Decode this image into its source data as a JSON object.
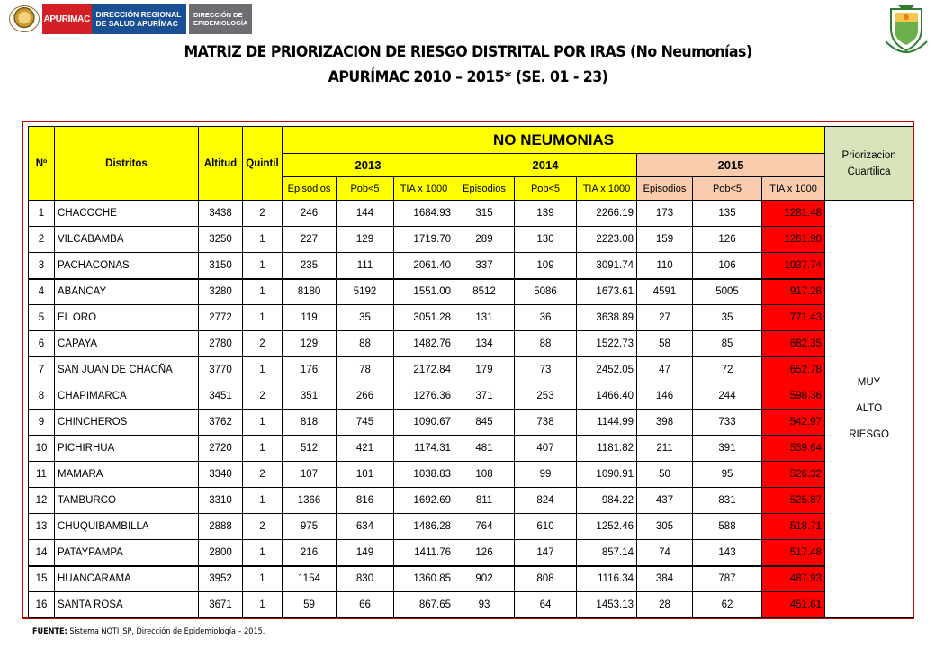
{
  "header": {
    "brand": "APURÍMAC",
    "dir_regional": [
      "DIRECCIÓN REGIONAL",
      "DE SALUD APURÍMAC"
    ],
    "dir_epi": [
      "DIRECCIÓN DE",
      "EPIDEMIOLOGÍA"
    ],
    "title_line1": "MATRIZ DE PRIORIZACION DE RIESGO DISTRITAL POR IRAS (No Neumonías)",
    "title_line2": "APURÍMAC 2010 – 2015* (SE. 01 - 23)"
  },
  "table": {
    "col_no": "Nº",
    "col_distritos": "Distritos",
    "col_altitud": "Altitud",
    "col_quintil": "Quintil",
    "group": "NO NEUMONIAS",
    "col_prio": "Priorizacion Cuartilica",
    "years": [
      "2013",
      "2014",
      "2015"
    ],
    "sub": [
      "Episodios",
      "Pob<5",
      "TIA x 1000"
    ],
    "priority_label": [
      "MUY",
      "ALTO",
      "RIESGO"
    ],
    "rows": [
      {
        "n": "1",
        "d": "CHACOCHE",
        "alt": "3438",
        "q": "2",
        "e13": "246",
        "p13": "144",
        "t13": "1684.93",
        "e14": "315",
        "p14": "139",
        "t14": "2266.19",
        "e15": "173",
        "p15": "135",
        "t15": "1281.48"
      },
      {
        "n": "2",
        "d": "VILCABAMBA",
        "alt": "3250",
        "q": "1",
        "e13": "227",
        "p13": "129",
        "t13": "1719.70",
        "e14": "289",
        "p14": "130",
        "t14": "2223.08",
        "e15": "159",
        "p15": "126",
        "t15": "1261.90"
      },
      {
        "n": "3",
        "d": "PACHACONAS",
        "alt": "3150",
        "q": "1",
        "e13": "235",
        "p13": "111",
        "t13": "2061.40",
        "e14": "337",
        "p14": "109",
        "t14": "3091.74",
        "e15": "110",
        "p15": "106",
        "t15": "1037.74"
      },
      {
        "n": "4",
        "d": "ABANCAY",
        "alt": "3280",
        "q": "1",
        "e13": "8180",
        "p13": "5192",
        "t13": "1551.00",
        "e14": "8512",
        "p14": "5086",
        "t14": "1673.61",
        "e15": "4591",
        "p15": "5005",
        "t15": "917.28"
      },
      {
        "n": "5",
        "d": "EL ORO",
        "alt": "2772",
        "q": "1",
        "e13": "119",
        "p13": "35",
        "t13": "3051.28",
        "e14": "131",
        "p14": "36",
        "t14": "3638.89",
        "e15": "27",
        "p15": "35",
        "t15": "771.43"
      },
      {
        "n": "6",
        "d": "CAPAYA",
        "alt": "2780",
        "q": "2",
        "e13": "129",
        "p13": "88",
        "t13": "1482.76",
        "e14": "134",
        "p14": "88",
        "t14": "1522.73",
        "e15": "58",
        "p15": "85",
        "t15": "682.35"
      },
      {
        "n": "7",
        "d": "SAN JUAN DE CHACÑA",
        "alt": "3770",
        "q": "1",
        "e13": "176",
        "p13": "78",
        "t13": "2172.84",
        "e14": "179",
        "p14": "73",
        "t14": "2452.05",
        "e15": "47",
        "p15": "72",
        "t15": "652.78"
      },
      {
        "n": "8",
        "d": "CHAPIMARCA",
        "alt": "3451",
        "q": "2",
        "e13": "351",
        "p13": "266",
        "t13": "1276.36",
        "e14": "371",
        "p14": "253",
        "t14": "1466.40",
        "e15": "146",
        "p15": "244",
        "t15": "598.36"
      },
      {
        "n": "9",
        "d": "CHINCHEROS",
        "alt": "3762",
        "q": "1",
        "e13": "818",
        "p13": "745",
        "t13": "1090.67",
        "e14": "845",
        "p14": "738",
        "t14": "1144.99",
        "e15": "398",
        "p15": "733",
        "t15": "542.97"
      },
      {
        "n": "10",
        "d": "PICHIRHUA",
        "alt": "2720",
        "q": "1",
        "e13": "512",
        "p13": "421",
        "t13": "1174.31",
        "e14": "481",
        "p14": "407",
        "t14": "1181.82",
        "e15": "211",
        "p15": "391",
        "t15": "539.64"
      },
      {
        "n": "11",
        "d": "MAMARA",
        "alt": "3340",
        "q": "2",
        "e13": "107",
        "p13": "101",
        "t13": "1038.83",
        "e14": "108",
        "p14": "99",
        "t14": "1090.91",
        "e15": "50",
        "p15": "95",
        "t15": "526.32"
      },
      {
        "n": "12",
        "d": "TAMBURCO",
        "alt": "3310",
        "q": "1",
        "e13": "1366",
        "p13": "816",
        "t13": "1692.69",
        "e14": "811",
        "p14": "824",
        "t14": "984.22",
        "e15": "437",
        "p15": "831",
        "t15": "525.87"
      },
      {
        "n": "13",
        "d": "CHUQUIBAMBILLA",
        "alt": "2888",
        "q": "2",
        "e13": "975",
        "p13": "634",
        "t13": "1486.28",
        "e14": "764",
        "p14": "610",
        "t14": "1252.46",
        "e15": "305",
        "p15": "588",
        "t15": "518.71"
      },
      {
        "n": "14",
        "d": "PATAYPAMPA",
        "alt": "2800",
        "q": "1",
        "e13": "216",
        "p13": "149",
        "t13": "1411.76",
        "e14": "126",
        "p14": "147",
        "t14": "857.14",
        "e15": "74",
        "p15": "143",
        "t15": "517.48"
      },
      {
        "n": "15",
        "d": "HUANCARAMA",
        "alt": "3952",
        "q": "1",
        "e13": "1154",
        "p13": "830",
        "t13": "1360.85",
        "e14": "902",
        "p14": "808",
        "t14": "1116.34",
        "e15": "384",
        "p15": "787",
        "t15": "487.93"
      },
      {
        "n": "16",
        "d": "SANTA ROSA",
        "alt": "3671",
        "q": "1",
        "e13": "59",
        "p13": "66",
        "t13": "867.65",
        "e14": "93",
        "p14": "64",
        "t14": "1453.13",
        "e15": "28",
        "p15": "62",
        "t15": "451.61"
      }
    ]
  },
  "footer": {
    "label": "FUENTE:",
    "text": "Sistema NOTI_SP, Dirección de Epidemiología – 2015."
  },
  "colors": {
    "header_yellow": "#ffff00",
    "year_2015_peach": "#f8cbad",
    "priority_green": "#d8e4bc",
    "tia_2015_red": "#ff0000",
    "frame_red": "#c00000"
  }
}
